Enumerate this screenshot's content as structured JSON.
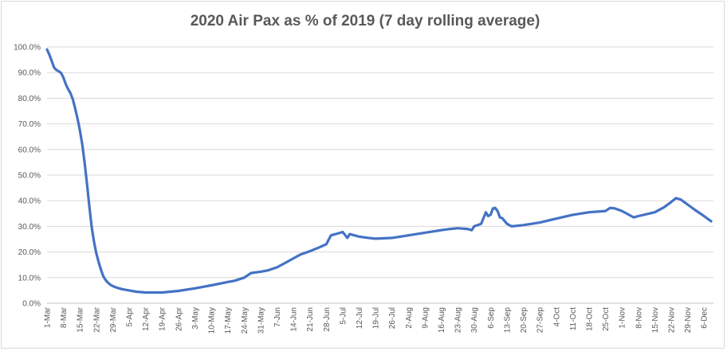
{
  "chart_data": {
    "type": "line",
    "title": "2020 Air Pax as % of 2019 (7 day rolling average)",
    "xlabel": "",
    "ylabel": "",
    "ylim": [
      0,
      100
    ],
    "grid": true,
    "legend": "none",
    "y_ticks": [
      "0.0%",
      "10.0%",
      "20.0%",
      "30.0%",
      "40.0%",
      "50.0%",
      "60.0%",
      "70.0%",
      "80.0%",
      "90.0%",
      "100.0%"
    ],
    "categories": [
      "1-Mar",
      "8-Mar",
      "15-Mar",
      "22-Mar",
      "29-Mar",
      "5-Apr",
      "12-Apr",
      "19-Apr",
      "26-Apr",
      "3-May",
      "10-May",
      "17-May",
      "24-May",
      "31-May",
      "7-Jun",
      "14-Jun",
      "21-Jun",
      "28-Jun",
      "5-Jul",
      "12-Jul",
      "19-Jul",
      "26-Jul",
      "2-Aug",
      "9-Aug",
      "16-Aug",
      "23-Aug",
      "30-Aug",
      "6-Sep",
      "13-Sep",
      "20-Sep",
      "27-Sep",
      "4-Oct",
      "11-Oct",
      "18-Oct",
      "25-Oct",
      "1-Nov",
      "8-Nov",
      "15-Nov",
      "22-Nov",
      "29-Nov",
      "6-Dec"
    ],
    "series": [
      {
        "color": "#4472c4",
        "points": [
          [
            "1-Mar",
            99.0
          ],
          [
            "2-Mar",
            97.0
          ],
          [
            "3-Mar",
            94.5
          ],
          [
            "4-Mar",
            92.0
          ],
          [
            "5-Mar",
            91.0
          ],
          [
            "6-Mar",
            90.5
          ],
          [
            "7-Mar",
            89.8
          ],
          [
            "8-Mar",
            88.0
          ],
          [
            "9-Mar",
            85.5
          ],
          [
            "10-Mar",
            83.5
          ],
          [
            "11-Mar",
            82.0
          ],
          [
            "12-Mar",
            79.5
          ],
          [
            "13-Mar",
            76.0
          ],
          [
            "14-Mar",
            72.0
          ],
          [
            "15-Mar",
            67.5
          ],
          [
            "16-Mar",
            62.0
          ],
          [
            "17-Mar",
            55.0
          ],
          [
            "18-Mar",
            47.0
          ],
          [
            "19-Mar",
            38.0
          ],
          [
            "20-Mar",
            30.0
          ],
          [
            "21-Mar",
            24.0
          ],
          [
            "22-Mar",
            19.5
          ],
          [
            "23-Mar",
            16.0
          ],
          [
            "24-Mar",
            13.0
          ],
          [
            "25-Mar",
            10.5
          ],
          [
            "26-Mar",
            9.0
          ],
          [
            "27-Mar",
            8.0
          ],
          [
            "28-Mar",
            7.2
          ],
          [
            "29-Mar",
            6.7
          ],
          [
            "31-Mar",
            6.0
          ],
          [
            "2-Apr",
            5.5
          ],
          [
            "5-Apr",
            5.0
          ],
          [
            "8-Apr",
            4.5
          ],
          [
            "12-Apr",
            4.2
          ],
          [
            "19-Apr",
            4.2
          ],
          [
            "26-Apr",
            4.8
          ],
          [
            "3-May",
            5.8
          ],
          [
            "10-May",
            7.0
          ],
          [
            "17-May",
            8.3
          ],
          [
            "20-May",
            8.8
          ],
          [
            "24-May",
            10.0
          ],
          [
            "27-May",
            11.8
          ],
          [
            "31-May",
            12.3
          ],
          [
            "3-Jun",
            12.8
          ],
          [
            "7-Jun",
            14.0
          ],
          [
            "10-Jun",
            15.5
          ],
          [
            "14-Jun",
            17.5
          ],
          [
            "17-Jun",
            19.0
          ],
          [
            "21-Jun",
            20.3
          ],
          [
            "25-Jun",
            21.8
          ],
          [
            "28-Jun",
            23.0
          ],
          [
            "30-Jun",
            26.5
          ],
          [
            "2-Jul",
            27.0
          ],
          [
            "5-Jul",
            27.8
          ],
          [
            "7-Jul",
            25.5
          ],
          [
            "8-Jul",
            27.0
          ],
          [
            "12-Jul",
            26.0
          ],
          [
            "16-Jul",
            25.5
          ],
          [
            "19-Jul",
            25.2
          ],
          [
            "26-Jul",
            25.5
          ],
          [
            "2-Aug",
            26.5
          ],
          [
            "9-Aug",
            27.5
          ],
          [
            "16-Aug",
            28.5
          ],
          [
            "20-Aug",
            29.0
          ],
          [
            "23-Aug",
            29.3
          ],
          [
            "27-Aug",
            29.0
          ],
          [
            "29-Aug",
            28.5
          ],
          [
            "30-Aug",
            30.0
          ],
          [
            "2-Sep",
            31.0
          ],
          [
            "4-Sep",
            35.5
          ],
          [
            "5-Sep",
            34.0
          ],
          [
            "6-Sep",
            34.5
          ],
          [
            "7-Sep",
            37.0
          ],
          [
            "8-Sep",
            37.2
          ],
          [
            "9-Sep",
            36.0
          ],
          [
            "10-Sep",
            33.5
          ],
          [
            "11-Sep",
            33.2
          ],
          [
            "13-Sep",
            31.0
          ],
          [
            "15-Sep",
            30.0
          ],
          [
            "20-Sep",
            30.5
          ],
          [
            "27-Sep",
            31.5
          ],
          [
            "4-Oct",
            33.0
          ],
          [
            "11-Oct",
            34.5
          ],
          [
            "18-Oct",
            35.5
          ],
          [
            "25-Oct",
            36.0
          ],
          [
            "27-Oct",
            37.2
          ],
          [
            "29-Oct",
            37.0
          ],
          [
            "1-Nov",
            36.0
          ],
          [
            "4-Nov",
            34.5
          ],
          [
            "6-Nov",
            33.5
          ],
          [
            "8-Nov",
            34.0
          ],
          [
            "15-Nov",
            35.5
          ],
          [
            "19-Nov",
            37.5
          ],
          [
            "22-Nov",
            39.5
          ],
          [
            "24-Nov",
            41.0
          ],
          [
            "26-Nov",
            40.5
          ],
          [
            "29-Nov",
            38.5
          ],
          [
            "2-Dec",
            36.5
          ],
          [
            "6-Dec",
            34.0
          ],
          [
            "9-Dec",
            32.0
          ]
        ]
      }
    ]
  }
}
